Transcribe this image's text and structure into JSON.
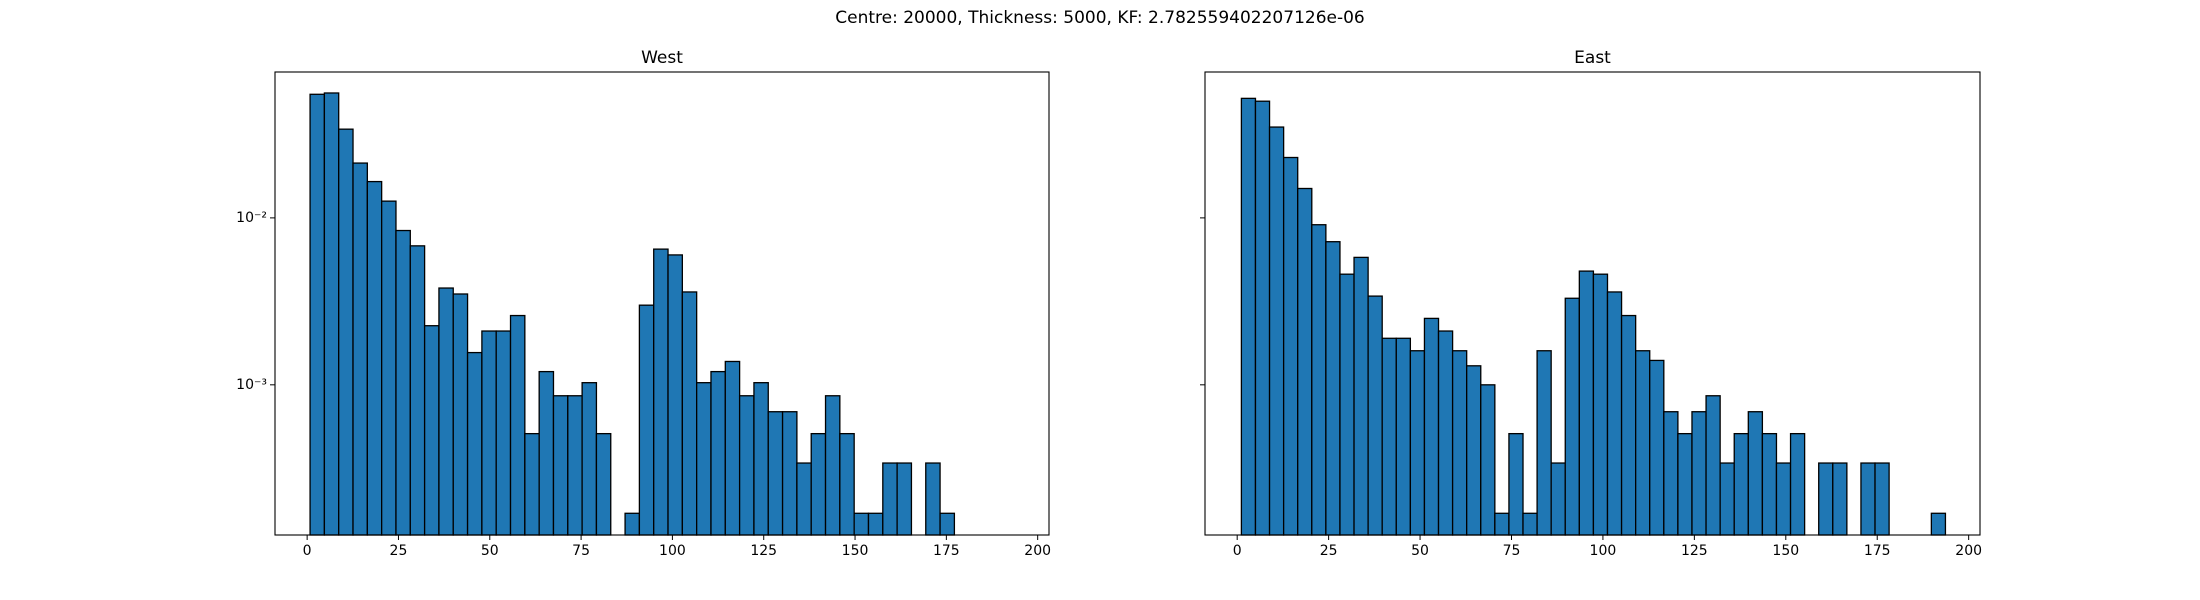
{
  "title": "Centre: 20000, Thickness: 5000, KF: 2.782559402207126e-06",
  "chart_data": [
    {
      "type": "histogram",
      "title": "West",
      "color": "#1f77b4",
      "edgecolor": "#000000",
      "log_y": true,
      "bins": [
        0.8,
        4.72,
        8.64,
        12.56,
        16.48,
        20.4,
        24.32,
        28.24,
        32.16,
        36.08,
        40.0,
        43.92,
        47.84,
        51.76,
        55.68,
        59.6,
        63.52,
        67.44,
        71.36,
        75.28,
        79.2,
        83.12,
        87.04,
        90.96,
        94.88,
        98.8,
        102.72,
        106.64,
        110.56,
        114.48,
        118.4,
        122.32,
        126.24,
        130.16,
        134.08,
        138.0,
        141.92,
        145.84,
        149.76,
        153.68,
        157.6,
        161.52,
        165.44,
        169.36,
        173.28,
        177.2
      ],
      "values": [
        0.055,
        0.056,
        0.034,
        0.0213,
        0.0165,
        0.0126,
        0.0084,
        0.0068,
        0.00226,
        0.0038,
        0.0035,
        0.00156,
        0.0021,
        0.0021,
        0.0026,
        0.00051,
        0.0012,
        0.00086,
        0.00086,
        0.00103,
        0.00051,
        0,
        0.00017,
        0.003,
        0.0065,
        0.006,
        0.0036,
        0.00103,
        0.0012,
        0.00138,
        0.00086,
        0.00103,
        0.00069,
        0.00069,
        0.00034,
        0.00051,
        0.00086,
        0.00051,
        0.00017,
        0.00017,
        0.00034,
        0.00034,
        0,
        0.00034,
        0.00017
      ],
      "xlim": [
        -8.8,
        203.1
      ],
      "ylim": [
        0.000126,
        0.0748
      ],
      "xticks": [
        0,
        25,
        50,
        75,
        100,
        125,
        150,
        175,
        200
      ],
      "yticks": [
        {
          "value": 0.01,
          "label": "10⁻²"
        },
        {
          "value": 0.001,
          "label": "10⁻³"
        }
      ]
    },
    {
      "type": "histogram",
      "title": "East",
      "color": "#1f77b4",
      "edgecolor": "#000000",
      "log_y": true,
      "sharey": true,
      "bins": [
        1.15,
        5.0,
        8.85,
        12.7,
        16.55,
        20.4,
        24.25,
        28.1,
        31.95,
        35.8,
        39.65,
        43.5,
        47.35,
        51.2,
        55.05,
        58.9,
        62.75,
        66.6,
        70.45,
        74.3,
        78.15,
        82.0,
        85.85,
        89.7,
        93.55,
        97.4,
        101.25,
        105.1,
        108.95,
        112.8,
        116.65,
        120.5,
        124.35,
        128.2,
        132.05,
        135.9,
        139.75,
        143.6,
        147.45,
        151.3,
        155.15,
        159.0,
        162.85,
        166.7,
        170.55,
        174.4,
        178.25,
        182.1,
        185.95,
        189.8,
        193.65
      ],
      "values": [
        0.052,
        0.05,
        0.035,
        0.023,
        0.015,
        0.0091,
        0.0072,
        0.0046,
        0.0058,
        0.0034,
        0.0019,
        0.0019,
        0.0016,
        0.0025,
        0.0021,
        0.0016,
        0.0013,
        0.001,
        0.00017,
        0.00051,
        0.00017,
        0.0016,
        0.00034,
        0.0033,
        0.0048,
        0.0046,
        0.0036,
        0.0026,
        0.0016,
        0.0014,
        0.00069,
        0.00051,
        0.00069,
        0.00086,
        0.00034,
        0.00051,
        0.00069,
        0.00051,
        0.00034,
        0.00051,
        0,
        0.00034,
        0.00034,
        0,
        0.00034,
        0.00034,
        0,
        0,
        0,
        0.00017
      ],
      "xlim": [
        -8.8,
        203.1
      ],
      "ylim": [
        0.000126,
        0.0748
      ],
      "xticks": [
        0,
        25,
        50,
        75,
        100,
        125,
        150,
        175,
        200
      ]
    }
  ]
}
